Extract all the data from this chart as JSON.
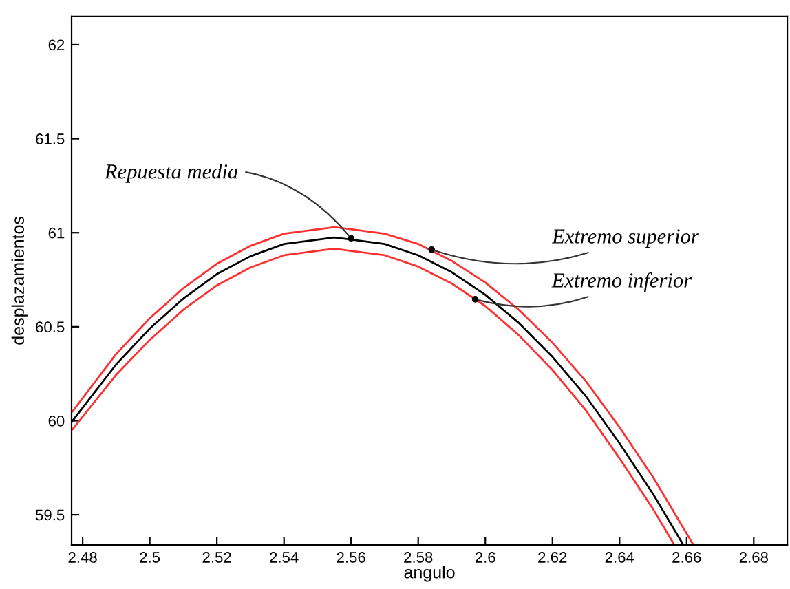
{
  "chart_data": {
    "type": "line",
    "xlabel": "angulo",
    "ylabel": "desplazamientos",
    "xlim": [
      2.4767,
      2.69
    ],
    "ylim": [
      59.34,
      62.15
    ],
    "xticks": [
      2.48,
      2.5,
      2.52,
      2.54,
      2.56,
      2.58,
      2.6,
      2.62,
      2.64,
      2.66,
      2.68
    ],
    "yticks": [
      59.5,
      60,
      60.5,
      61,
      61.5,
      62
    ],
    "grid": false,
    "legend": false,
    "line_style": "solid",
    "marker": "none",
    "series": [
      {
        "color": "#ff3030",
        "x": [
          2.477,
          2.49,
          2.5,
          2.51,
          2.52,
          2.53,
          2.54,
          2.555,
          2.57,
          2.58,
          2.59,
          2.6,
          2.61,
          2.62,
          2.63,
          2.64,
          2.65,
          2.662
        ],
        "values": [
          60.05,
          60.355,
          60.545,
          60.705,
          60.835,
          60.93,
          60.995,
          61.03,
          60.995,
          60.94,
          60.85,
          60.735,
          60.59,
          60.415,
          60.21,
          59.965,
          59.7,
          59.34
        ]
      },
      {
        "color": "#ff3030",
        "x": [
          2.477,
          2.49,
          2.5,
          2.51,
          2.52,
          2.53,
          2.54,
          2.555,
          2.57,
          2.58,
          2.59,
          2.6,
          2.61,
          2.62,
          2.63,
          2.64,
          2.65,
          2.656
        ],
        "values": [
          59.955,
          60.245,
          60.43,
          60.59,
          60.72,
          60.815,
          60.88,
          60.915,
          60.88,
          60.82,
          60.73,
          60.61,
          60.455,
          60.27,
          60.055,
          59.8,
          59.53,
          59.35
        ]
      },
      {
        "color": "#000000",
        "x": [
          2.477,
          2.49,
          2.5,
          2.51,
          2.52,
          2.53,
          2.54,
          2.555,
          2.57,
          2.58,
          2.59,
          2.6,
          2.61,
          2.62,
          2.63,
          2.64,
          2.65,
          2.659
        ],
        "values": [
          60.0,
          60.3,
          60.49,
          60.65,
          60.78,
          60.875,
          60.94,
          60.975,
          60.94,
          60.88,
          60.79,
          60.67,
          60.52,
          60.34,
          60.13,
          59.88,
          59.61,
          59.34
        ]
      }
    ],
    "annotations": [
      {
        "text": "Repuesta media",
        "x": 2.56,
        "y": 60.97
      },
      {
        "text": "Extremo superior",
        "x": 2.584,
        "y": 60.91
      },
      {
        "text": "Extremo inferior",
        "x": 2.597,
        "y": 60.646
      }
    ]
  }
}
